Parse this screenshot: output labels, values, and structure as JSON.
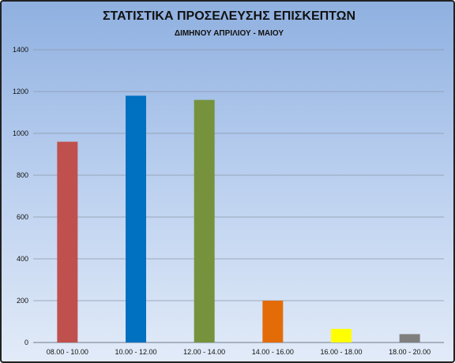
{
  "chart_data": {
    "type": "bar",
    "title": "ΣΤΑΤΙΣΤΙΚΑ ΠΡΟΣΕΛΕΥΣΗΣ ΕΠΙΣΚΕΠΤΩΝ",
    "subtitle": "ΔΙΜΗΝΟΥ ΑΠΡΙΛΙΟΥ - ΜΑΙΟΥ",
    "xlabel": "",
    "ylabel": "",
    "categories": [
      "08.00 - 10.00",
      "10.00 - 12.00",
      "12.00 - 14.00",
      "14.00 - 16.00",
      "16.00 - 18.00",
      "18.00 - 20.00"
    ],
    "values": [
      960,
      1180,
      1160,
      200,
      65,
      40
    ],
    "colors": [
      "#c0504d",
      "#0070c0",
      "#76923c",
      "#e36c09",
      "#ffff00",
      "#7f7f7f"
    ],
    "ylim": [
      0,
      1400
    ],
    "yticks": [
      0,
      200,
      400,
      600,
      800,
      1000,
      1200,
      1400
    ],
    "grid": true,
    "legend": "none"
  }
}
